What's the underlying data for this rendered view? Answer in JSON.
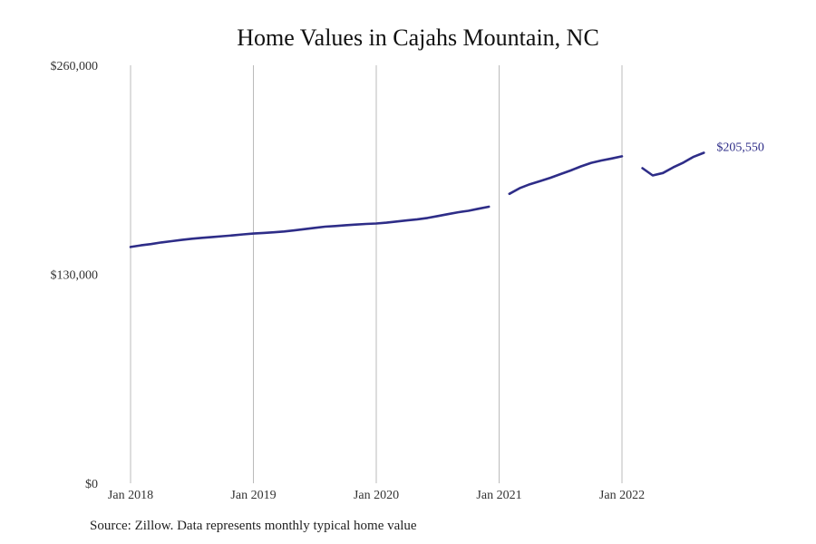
{
  "chart_data": {
    "type": "line",
    "title": "Home Values in Cajahs Mountain, NC",
    "source": "Source: Zillow. Data represents monthly typical home value",
    "xlabel": "",
    "ylabel": "",
    "ylim": [
      0,
      260000
    ],
    "xlim": [
      "2018-01",
      "2022-11"
    ],
    "y_ticks": [
      {
        "value": 0,
        "label": "$0"
      },
      {
        "value": 130000,
        "label": "$130,000"
      },
      {
        "value": 260000,
        "label": "$260,000"
      }
    ],
    "x_ticks": [
      {
        "value": "2018-01",
        "label": "Jan 2018"
      },
      {
        "value": "2019-01",
        "label": "Jan 2019"
      },
      {
        "value": "2020-01",
        "label": "Jan 2020"
      },
      {
        "value": "2021-01",
        "label": "Jan 2021"
      },
      {
        "value": "2022-01",
        "label": "Jan 2022"
      }
    ],
    "grid": {
      "vertical": true,
      "horizontal": false
    },
    "end_label": "$205,550",
    "line_color": "#2e2d88",
    "grid_color": "#bbbbbb",
    "series": [
      {
        "segments": [
          [
            {
              "x": "2018-01",
              "y": 147000
            },
            {
              "x": "2018-02",
              "y": 148000
            },
            {
              "x": "2018-03",
              "y": 148800
            },
            {
              "x": "2018-04",
              "y": 149800
            },
            {
              "x": "2018-05",
              "y": 150600
            },
            {
              "x": "2018-06",
              "y": 151400
            },
            {
              "x": "2018-07",
              "y": 152100
            },
            {
              "x": "2018-08",
              "y": 152700
            },
            {
              "x": "2018-09",
              "y": 153200
            },
            {
              "x": "2018-10",
              "y": 153700
            },
            {
              "x": "2018-11",
              "y": 154200
            },
            {
              "x": "2018-12",
              "y": 154800
            },
            {
              "x": "2019-01",
              "y": 155300
            },
            {
              "x": "2019-02",
              "y": 155700
            },
            {
              "x": "2019-03",
              "y": 156100
            },
            {
              "x": "2019-04",
              "y": 156600
            },
            {
              "x": "2019-05",
              "y": 157300
            },
            {
              "x": "2019-06",
              "y": 158100
            },
            {
              "x": "2019-07",
              "y": 158900
            },
            {
              "x": "2019-08",
              "y": 159600
            },
            {
              "x": "2019-09",
              "y": 160000
            },
            {
              "x": "2019-10",
              "y": 160500
            },
            {
              "x": "2019-11",
              "y": 160900
            },
            {
              "x": "2019-12",
              "y": 161300
            },
            {
              "x": "2020-01",
              "y": 161600
            },
            {
              "x": "2020-02",
              "y": 162100
            },
            {
              "x": "2020-03",
              "y": 162800
            },
            {
              "x": "2020-04",
              "y": 163500
            },
            {
              "x": "2020-05",
              "y": 164200
            },
            {
              "x": "2020-06",
              "y": 165000
            },
            {
              "x": "2020-07",
              "y": 166200
            },
            {
              "x": "2020-08",
              "y": 167400
            },
            {
              "x": "2020-09",
              "y": 168600
            },
            {
              "x": "2020-10",
              "y": 169500
            },
            {
              "x": "2020-11",
              "y": 170800
            },
            {
              "x": "2020-12",
              "y": 172000
            }
          ],
          [
            {
              "x": "2021-02",
              "y": 180000
            },
            {
              "x": "2021-03",
              "y": 183500
            },
            {
              "x": "2021-04",
              "y": 186000
            },
            {
              "x": "2021-05",
              "y": 188000
            },
            {
              "x": "2021-06",
              "y": 190000
            },
            {
              "x": "2021-07",
              "y": 192300
            },
            {
              "x": "2021-08",
              "y": 194600
            },
            {
              "x": "2021-09",
              "y": 197100
            },
            {
              "x": "2021-10",
              "y": 199300
            },
            {
              "x": "2021-11",
              "y": 200800
            },
            {
              "x": "2021-12",
              "y": 202000
            },
            {
              "x": "2022-01",
              "y": 203400
            }
          ],
          [
            {
              "x": "2022-03",
              "y": 196000
            },
            {
              "x": "2022-04",
              "y": 191500
            },
            {
              "x": "2022-05",
              "y": 193000
            },
            {
              "x": "2022-06",
              "y": 196500
            },
            {
              "x": "2022-07",
              "y": 199500
            },
            {
              "x": "2022-08",
              "y": 203100
            },
            {
              "x": "2022-09",
              "y": 205550
            }
          ]
        ]
      }
    ]
  }
}
